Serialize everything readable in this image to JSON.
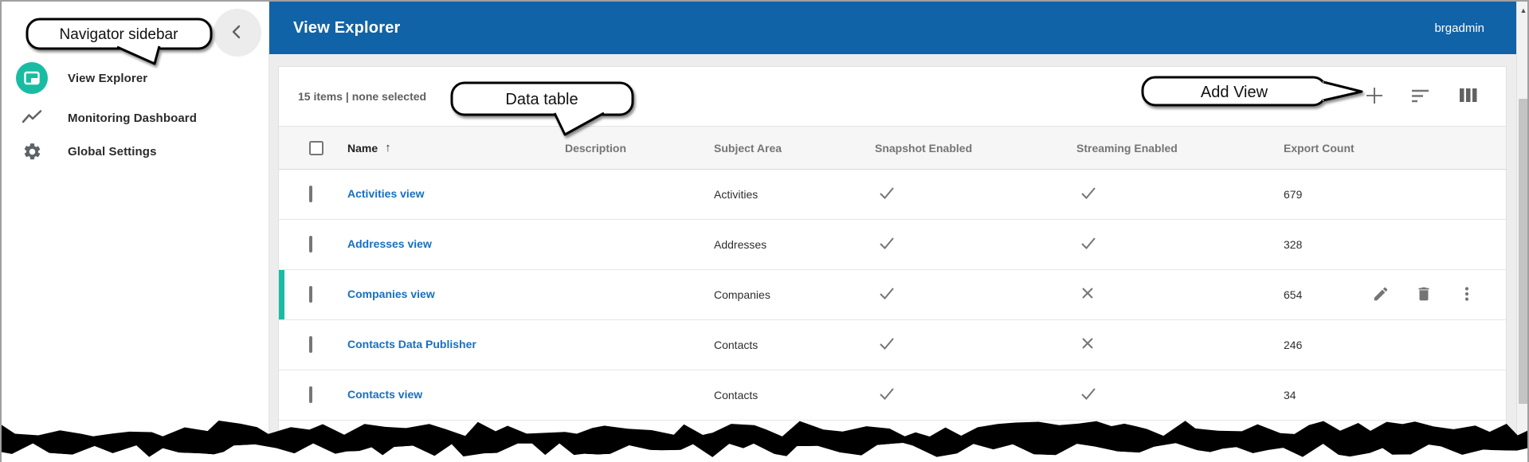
{
  "annotations": {
    "navigator_callout": "Navigator sidebar",
    "data_table_callout": "Data table",
    "add_view_callout": "Add View"
  },
  "app_header": {
    "title": "View Explorer",
    "username": "brgadmin"
  },
  "sidebar": {
    "collapse_icon": "chevron-left",
    "items": [
      {
        "label": "View Explorer",
        "icon": "view-explorer-icon",
        "active": true
      },
      {
        "label": "Monitoring Dashboard",
        "icon": "monitoring-dashboard-icon",
        "active": false
      },
      {
        "label": "Global Settings",
        "icon": "global-settings-icon",
        "active": false
      }
    ]
  },
  "toolbar": {
    "status": "15 items | none selected",
    "icons": [
      {
        "name": "add-view-icon",
        "glyph": "plus"
      },
      {
        "name": "sort-icon",
        "glyph": "sort-lines"
      },
      {
        "name": "columns-icon",
        "glyph": "column-bars"
      }
    ]
  },
  "table": {
    "columns": [
      {
        "label": "Name",
        "sort": "asc"
      },
      {
        "label": "Description"
      },
      {
        "label": "Subject Area"
      },
      {
        "label": "Snapshot Enabled"
      },
      {
        "label": "Streaming Enabled"
      },
      {
        "label": "Export Count"
      }
    ],
    "rows": [
      {
        "name": "Activities view",
        "description": "",
        "subject_area": "Activities",
        "snapshot_enabled": true,
        "streaming_enabled": true,
        "export_count": "679",
        "selected": false
      },
      {
        "name": "Addresses view",
        "description": "",
        "subject_area": "Addresses",
        "snapshot_enabled": true,
        "streaming_enabled": true,
        "export_count": "328",
        "selected": false
      },
      {
        "name": "Companies view",
        "description": "",
        "subject_area": "Companies",
        "snapshot_enabled": true,
        "streaming_enabled": false,
        "export_count": "654",
        "selected": true,
        "row_actions": [
          "edit",
          "delete",
          "more"
        ]
      },
      {
        "name": "Contacts Data Publisher",
        "description": "",
        "subject_area": "Contacts",
        "snapshot_enabled": true,
        "streaming_enabled": false,
        "export_count": "246",
        "selected": false
      },
      {
        "name": "Contacts view",
        "description": "",
        "subject_area": "Contacts",
        "snapshot_enabled": true,
        "streaming_enabled": true,
        "export_count": "34",
        "selected": false
      }
    ]
  },
  "colors": {
    "header_blue": "#1163a7",
    "accent_teal": "#19bca3",
    "link_blue": "#176fc1",
    "icon_gray": "#757575"
  },
  "scrollbar": {
    "up_arrow": "▲"
  }
}
